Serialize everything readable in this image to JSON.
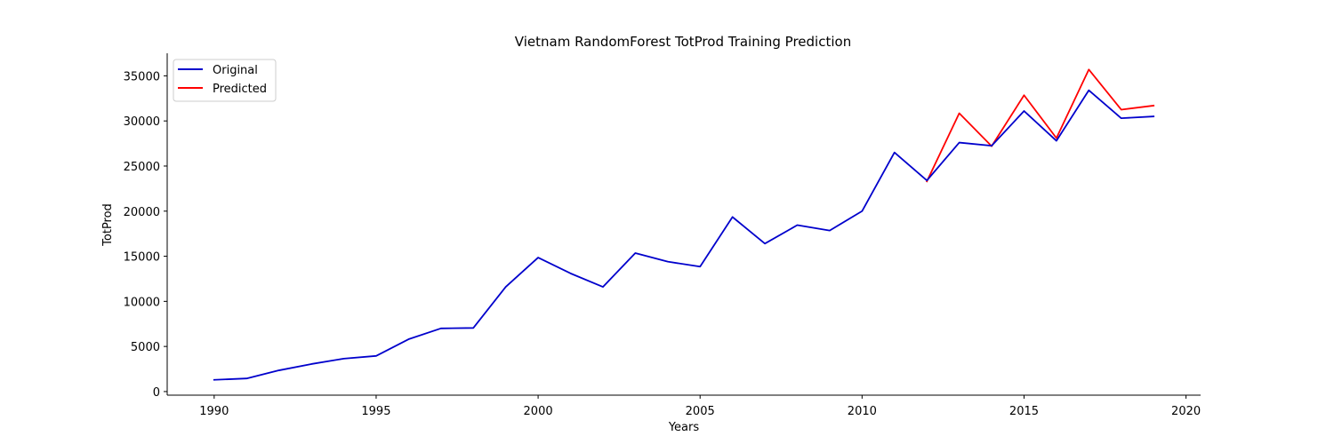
{
  "chart_data": {
    "type": "line",
    "title": "Vietnam RandomForest TotProd Training Prediction",
    "xlabel": "Years",
    "ylabel": "TotProd",
    "xlim": [
      1988.55,
      2020.45
    ],
    "ylim": [
      -400,
      37500
    ],
    "xticks": [
      1990,
      1995,
      2000,
      2005,
      2010,
      2015,
      2020
    ],
    "yticks": [
      0,
      5000,
      10000,
      15000,
      20000,
      25000,
      30000,
      35000
    ],
    "legend": {
      "placement": "top-left",
      "entries": [
        "Original",
        "Predicted"
      ]
    },
    "grid": false,
    "series": [
      {
        "name": "Predicted",
        "color": "#ff0000",
        "x": [
          2012,
          2013,
          2014,
          2015,
          2016,
          2017,
          2018,
          2019
        ],
        "y": [
          23300,
          30850,
          27200,
          32850,
          28100,
          35700,
          31250,
          31700
        ]
      },
      {
        "name": "Original",
        "color": "#0000cc",
        "x": [
          1990,
          1991,
          1992,
          1993,
          1994,
          1995,
          1996,
          1997,
          1998,
          1999,
          2000,
          2001,
          2002,
          2003,
          2004,
          2005,
          2006,
          2007,
          2008,
          2009,
          2010,
          2011,
          2012,
          2013,
          2014,
          2015,
          2016,
          2017,
          2018,
          2019
        ],
        "y": [
          1300,
          1450,
          2350,
          3050,
          3650,
          3950,
          5800,
          7000,
          7050,
          11600,
          14850,
          13100,
          11600,
          15350,
          14400,
          13850,
          19350,
          16400,
          18450,
          17850,
          20000,
          26500,
          23400,
          27600,
          27250,
          31100,
          27800,
          33400,
          30300,
          30500
        ]
      }
    ]
  }
}
